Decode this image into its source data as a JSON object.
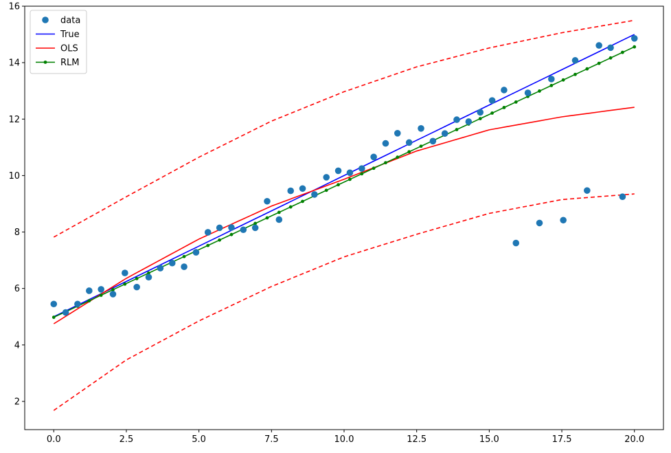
{
  "chart_data": {
    "type": "line",
    "title": "",
    "xlabel": "",
    "ylabel": "",
    "xlim": [
      -1.0,
      21.0
    ],
    "ylim": [
      1.0,
      16.0
    ],
    "xticks": [
      0.0,
      2.5,
      5.0,
      7.5,
      10.0,
      12.5,
      15.0,
      17.5,
      20.0
    ],
    "xtick_labels": [
      "0.0",
      "2.5",
      "5.0",
      "7.5",
      "10.0",
      "12.5",
      "15.0",
      "17.5",
      "20.0"
    ],
    "yticks": [
      2,
      4,
      6,
      8,
      10,
      12,
      14,
      16
    ],
    "ytick_labels": [
      "2",
      "4",
      "6",
      "8",
      "10",
      "12",
      "14",
      "16"
    ],
    "grid": false,
    "legend_position": "top-left",
    "colors": {
      "data": "#1f77b4",
      "true": "#0000ff",
      "ols": "#ff0000",
      "rlm": "#008000"
    },
    "legend": [
      {
        "label": "data",
        "style": "marker",
        "color": "#1f77b4"
      },
      {
        "label": "True",
        "style": "line",
        "color": "#0000ff"
      },
      {
        "label": "OLS",
        "style": "line",
        "color": "#ff0000"
      },
      {
        "label": "RLM",
        "style": "line-marker",
        "color": "#008000"
      }
    ],
    "scatter": {
      "name": "data",
      "x": [
        0.0,
        0.41,
        0.82,
        1.22,
        1.63,
        2.04,
        2.45,
        2.86,
        3.27,
        3.67,
        4.08,
        4.49,
        4.9,
        5.31,
        5.71,
        6.12,
        6.53,
        6.94,
        7.35,
        7.76,
        8.16,
        8.57,
        8.98,
        9.39,
        9.8,
        10.2,
        10.61,
        11.02,
        11.43,
        11.84,
        12.24,
        12.65,
        13.06,
        13.47,
        13.88,
        14.29,
        14.69,
        15.1,
        15.51,
        15.92,
        16.33,
        16.73,
        17.14,
        17.55,
        17.96,
        18.37,
        18.78,
        19.18,
        19.59,
        20.0
      ],
      "y": [
        5.45,
        5.15,
        5.45,
        5.92,
        5.97,
        5.8,
        6.55,
        6.05,
        6.4,
        6.72,
        6.9,
        6.77,
        7.28,
        7.99,
        8.15,
        8.16,
        8.08,
        8.15,
        9.09,
        8.44,
        9.46,
        9.54,
        9.33,
        9.94,
        10.17,
        10.1,
        10.25,
        10.66,
        11.14,
        11.5,
        11.17,
        11.67,
        11.22,
        11.49,
        11.98,
        11.91,
        12.24,
        12.66,
        13.03,
        7.61,
        12.93,
        8.32,
        13.42,
        8.42,
        14.08,
        9.47,
        14.61,
        14.53,
        9.25,
        14.86
      ]
    },
    "series": [
      {
        "name": "True",
        "x": [
          0.0,
          20.0
        ],
        "y": [
          5.0,
          15.0
        ]
      },
      {
        "name": "OLS",
        "x": [
          0.0,
          2.5,
          5.0,
          7.5,
          10.0,
          12.5,
          15.0,
          17.5,
          20.0
        ],
        "y": [
          4.75,
          6.36,
          7.75,
          8.92,
          9.87,
          10.87,
          11.62,
          12.08,
          12.42
        ]
      },
      {
        "name": "",
        "x": [
          0.0,
          2.5,
          5.0,
          7.5,
          10.0,
          12.5,
          15.0,
          17.5,
          20.0
        ],
        "y": [
          7.82,
          9.25,
          10.65,
          11.93,
          12.97,
          13.85,
          14.52,
          15.06,
          15.5
        ]
      },
      {
        "name": "",
        "x": [
          0.0,
          2.5,
          5.0,
          7.5,
          10.0,
          12.5,
          15.0,
          17.5,
          20.0
        ],
        "y": [
          1.68,
          3.47,
          4.85,
          6.07,
          7.12,
          7.92,
          8.66,
          9.15,
          9.35
        ]
      },
      {
        "name": "RLM",
        "x": [
          0.0,
          20.0
        ],
        "y": [
          4.98,
          14.56
        ]
      }
    ]
  }
}
